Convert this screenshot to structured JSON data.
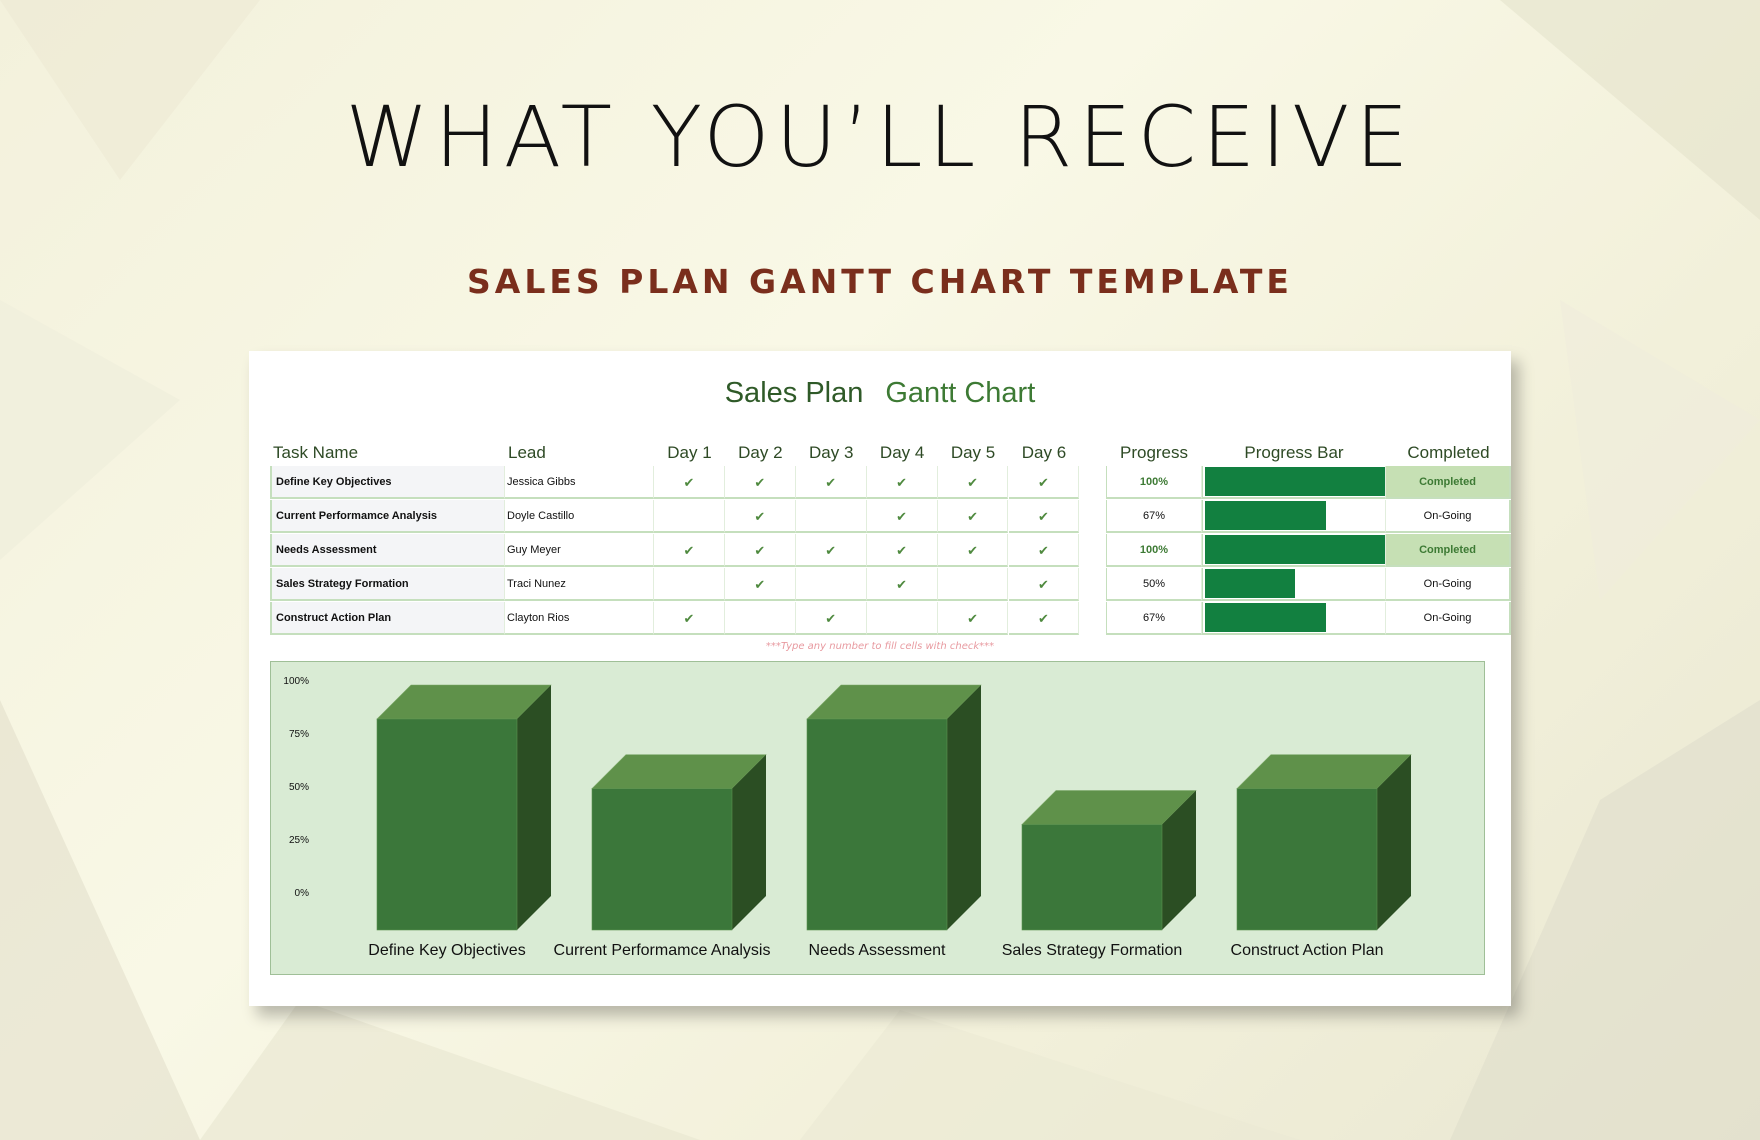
{
  "page": {
    "heading": "WHAT YOU’LL RECEIVE",
    "subheading": "SALES PLAN GANTT CHART TEMPLATE"
  },
  "sheet": {
    "title_part1": "Sales Plan",
    "title_part2": "Gantt Chart",
    "columns": [
      "Task Name",
      "Lead",
      "Day 1",
      "Day 2",
      "Day 3",
      "Day 4",
      "Day 5",
      "Day 6",
      "Progress",
      "Progress Bar",
      "Completed"
    ],
    "check_icon": "check-icon",
    "check_glyph": "✔",
    "rows": [
      {
        "task": "Define Key Objectives",
        "lead": "Jessica Gibbs",
        "days": [
          1,
          1,
          1,
          1,
          1,
          1
        ],
        "progress": "100%",
        "progress_value": 100,
        "status": "Completed"
      },
      {
        "task": "Current Performamce Analysis",
        "lead": "Doyle Castillo",
        "days": [
          0,
          1,
          0,
          1,
          1,
          1
        ],
        "progress": "67%",
        "progress_value": 67,
        "status": "On-Going"
      },
      {
        "task": "Needs Assessment",
        "lead": "Guy Meyer",
        "days": [
          1,
          1,
          1,
          1,
          1,
          1
        ],
        "progress": "100%",
        "progress_value": 100,
        "status": "Completed"
      },
      {
        "task": "Sales Strategy Formation",
        "lead": "Traci Nunez",
        "days": [
          0,
          1,
          0,
          1,
          0,
          1
        ],
        "progress": "50%",
        "progress_value": 50,
        "status": "On-Going"
      },
      {
        "task": "Construct Action Plan",
        "lead": "Clayton Rios",
        "days": [
          1,
          0,
          1,
          0,
          1,
          1
        ],
        "progress": "67%",
        "progress_value": 67,
        "status": "On-Going"
      }
    ],
    "note": "***Type any number to fill cells with check***",
    "colors": {
      "bar_fill": "#128040",
      "completed_bg": "#c6e0b4",
      "accent": "#3d7a34"
    }
  },
  "chart_data": {
    "type": "bar",
    "style": "3d-column",
    "categories": [
      "Define Key Objectives",
      "Current Performamce Analysis",
      "Needs Assessment",
      "Sales Strategy Formation",
      "Construct Action Plan"
    ],
    "values": [
      100,
      67,
      100,
      50,
      67
    ],
    "y_ticks": [
      "100%",
      "75%",
      "50%",
      "25%",
      "0%"
    ],
    "ylim": [
      0,
      100
    ],
    "grid": false,
    "colors": {
      "front": "#3b773a",
      "top": "#5f914a",
      "side": "#2b4e23",
      "background": "#d9ebd4"
    }
  }
}
